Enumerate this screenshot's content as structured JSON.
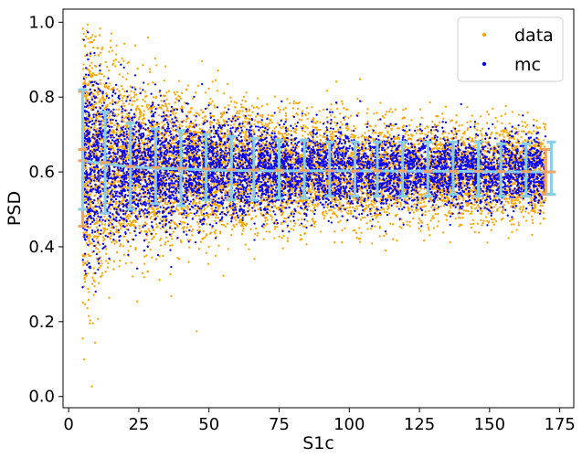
{
  "chart_data": {
    "type": "scatter",
    "xlabel": "S1c",
    "ylabel": "PSD",
    "xlim": [
      -2,
      180
    ],
    "ylim": [
      -0.03,
      1.035
    ],
    "x_ticks": [
      "0",
      "25",
      "50",
      "75",
      "100",
      "125",
      "150",
      "175"
    ],
    "x_tick_values": [
      0,
      25,
      50,
      75,
      100,
      125,
      150,
      175
    ],
    "y_ticks": [
      "0.0",
      "0.2",
      "0.4",
      "0.6",
      "0.8",
      "1.0"
    ],
    "y_tick_values": [
      0.0,
      0.2,
      0.4,
      0.6,
      0.8,
      1.0
    ],
    "grid": false,
    "legend_position": "top-right",
    "series": [
      {
        "name": "data",
        "color": "#FFA500",
        "x_range": [
          5,
          170
        ],
        "description_of_spread": [
          [
            5,
            0.42
          ],
          [
            10,
            0.33
          ],
          [
            20,
            0.24
          ],
          [
            50,
            0.17
          ],
          [
            100,
            0.13
          ],
          [
            170,
            0.12
          ]
        ]
      },
      {
        "name": "mc",
        "color": "#0000FF",
        "x_range": [
          5,
          170
        ],
        "description_of_spread": [
          [
            5,
            0.3
          ],
          [
            10,
            0.25
          ],
          [
            20,
            0.2
          ],
          [
            50,
            0.15
          ],
          [
            100,
            0.11
          ],
          [
            170,
            0.1
          ]
        ]
      }
    ],
    "center_curve": {
      "x": [
        5,
        10,
        20,
        30,
        40,
        50,
        70,
        100,
        130,
        150,
        170
      ],
      "y": [
        0.63,
        0.625,
        0.615,
        0.61,
        0.608,
        0.605,
        0.603,
        0.603,
        0.602,
        0.601,
        0.6
      ]
    },
    "data_errorbars": {
      "color": "#F4A460",
      "x": [
        5,
        170
      ],
      "mean": [
        0.63,
        0.6
      ],
      "low": [
        0.455,
        0.54
      ],
      "high": [
        0.815,
        0.66
      ]
    },
    "mc_errorbars": {
      "color": "#87CEEB",
      "x": [
        5,
        13,
        22,
        31,
        40,
        49,
        58,
        66,
        75,
        84,
        93,
        102,
        110,
        119,
        128,
        137,
        146,
        154,
        163,
        172
      ],
      "mean": [
        0.66,
        0.625,
        0.615,
        0.612,
        0.61,
        0.608,
        0.606,
        0.605,
        0.604,
        0.604,
        0.603,
        0.603,
        0.603,
        0.603,
        0.602,
        0.602,
        0.602,
        0.601,
        0.601,
        0.6
      ],
      "low": [
        0.5,
        0.49,
        0.5,
        0.515,
        0.51,
        0.525,
        0.525,
        0.525,
        0.53,
        0.53,
        0.535,
        0.535,
        0.535,
        0.535,
        0.535,
        0.54,
        0.535,
        0.535,
        0.535,
        0.54
      ],
      "high": [
        0.82,
        0.76,
        0.73,
        0.715,
        0.71,
        0.7,
        0.695,
        0.69,
        0.685,
        0.685,
        0.68,
        0.68,
        0.68,
        0.68,
        0.68,
        0.68,
        0.68,
        0.675,
        0.675,
        0.68
      ]
    }
  }
}
